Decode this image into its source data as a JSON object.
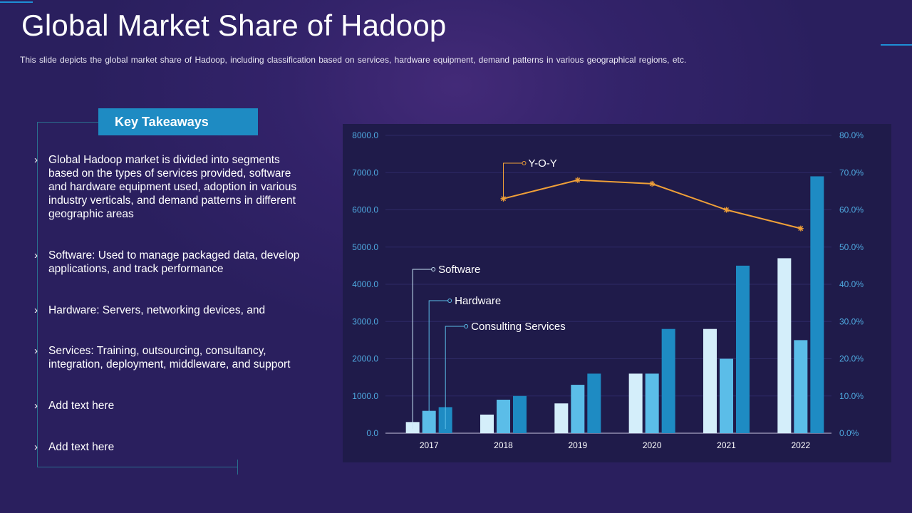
{
  "slide": {
    "title": "Global Market Share of Hadoop",
    "subtitle": "This slide depicts the global market share of Hadoop, including classification based on services, hardware equipment, demand patterns in various geographical regions, etc."
  },
  "takeaways": {
    "header": "Key Takeaways",
    "items": [
      "Global Hadoop market is divided into segments based on the types of services provided, software and hardware equipment used, adoption in various industry verticals, and demand patterns in different geographic areas",
      "Software: Used to manage packaged data, develop applications, and track performance",
      "Hardware: Servers, networking devices, and",
      "Services: Training, outsourcing, consultancy, integration, deployment, middleware, and support",
      "Add text here",
      "Add text here"
    ],
    "bullet_glyph": "›"
  },
  "colors": {
    "software": "#d4eefa",
    "hardware": "#5bbde8",
    "consulting": "#1e8bc3",
    "yoy": "#f0a038",
    "tick": "#4fa9e0",
    "grid": "#2e2a66"
  },
  "chart_data": {
    "type": "bar",
    "categories": [
      "2017",
      "2018",
      "2019",
      "2020",
      "2021",
      "2022"
    ],
    "series": [
      {
        "name": "Software",
        "values": [
          300,
          500,
          800,
          1600,
          2800,
          4700
        ],
        "axis": "left"
      },
      {
        "name": "Hardware",
        "values": [
          600,
          900,
          1300,
          1600,
          2000,
          2500
        ],
        "axis": "left"
      },
      {
        "name": "Consulting Services",
        "values": [
          700,
          1000,
          1600,
          2800,
          4500,
          6900
        ],
        "axis": "left"
      },
      {
        "name": "Y-O-Y",
        "type": "line",
        "values": [
          63,
          68,
          67,
          60,
          55
        ],
        "x": [
          "2018",
          "2019",
          "2020",
          "2021",
          "2022"
        ],
        "axis": "right",
        "marker": "asterisk"
      }
    ],
    "y_left": {
      "min": 0,
      "max": 8000,
      "step": 1000,
      "ticks": [
        "0.0",
        "1000.0",
        "2000.0",
        "3000.0",
        "4000.0",
        "5000.0",
        "6000.0",
        "7000.0",
        "8000.0"
      ]
    },
    "y_right": {
      "min": 0,
      "max": 80,
      "step": 10,
      "ticks": [
        "0.0%",
        "10.0%",
        "20.0%",
        "30.0%",
        "40.0%",
        "50.0%",
        "60.0%",
        "70.0%",
        "80.0%"
      ]
    },
    "grid": true,
    "legend": "inline callouts",
    "xlabel": "",
    "ylabel": ""
  }
}
